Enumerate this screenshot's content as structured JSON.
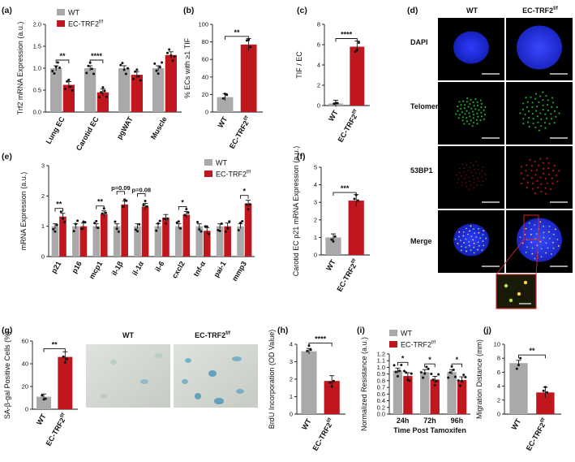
{
  "colors": {
    "wt": "#a9a9a9",
    "ko": "#c0161d",
    "dapi": "#1c2bd8",
    "telomere": "#1fa52b",
    "bp53": "#b8161a",
    "microscopy_bg": "#000000"
  },
  "panels": {
    "a": "(a)",
    "b": "(b)",
    "c": "(c)",
    "d": "(d)",
    "e": "(e)",
    "f": "(f)",
    "g": "(g)",
    "h": "(h)",
    "i": "(i)",
    "j": "(j)"
  },
  "legend": {
    "wt": "WT",
    "ko": "EC-TRF2",
    "ko_sup": "f/f"
  },
  "microscopy": {
    "col_wt": "WT",
    "col_ko": "EC-TRF2",
    "col_ko_sup": "f/f",
    "rows": [
      "DAPI",
      "Telomere",
      "53BP1",
      "Merge"
    ]
  },
  "sa_gal_images": {
    "col_wt": "WT",
    "col_ko": "EC-TRF2",
    "col_ko_sup": "f/f"
  },
  "group_labels": {
    "wt": "WT",
    "ko": "EC-TRF2",
    "ko_sup": "f/f",
    "ko_sup_a": "f/f"
  },
  "chart_data": [
    {
      "id": "a",
      "type": "bar",
      "ylabel": "Trf2 mRNA Expression (a.u.)",
      "categories": [
        "Lung EC",
        "Carotid EC",
        "pgWAT",
        "Muscle"
      ],
      "series": [
        {
          "name": "WT",
          "values": [
            1.0,
            1.0,
            1.0,
            1.0
          ]
        },
        {
          "name": "EC-TRF2f/f",
          "values": [
            0.62,
            0.45,
            0.85,
            1.3
          ]
        }
      ],
      "ylim": [
        0,
        2.0
      ],
      "yticks": [
        "0.0",
        "0.5",
        "1.0",
        "1.5",
        "2.0"
      ],
      "significance": [
        "**",
        "****",
        "",
        ""
      ]
    },
    {
      "id": "b",
      "type": "bar",
      "ylabel": "% ECs with ≥1 TIF",
      "categories": [
        "WT",
        "EC-TRF2f/f"
      ],
      "values": [
        17,
        77
      ],
      "ylim": [
        0,
        100
      ],
      "yticks": [
        "0",
        "20",
        "40",
        "60",
        "80",
        "100"
      ],
      "significance": "**"
    },
    {
      "id": "c",
      "type": "bar",
      "ylabel": "TIF / EC",
      "categories": [
        "WT",
        "EC-TRF2f/f"
      ],
      "values": [
        0.2,
        5.8
      ],
      "ylim": [
        0,
        8
      ],
      "yticks": [
        "0",
        "2",
        "4",
        "6",
        "8"
      ],
      "significance": "****"
    },
    {
      "id": "e",
      "type": "bar",
      "ylabel": "mRNA Expression (a.u.)",
      "categories": [
        "p21",
        "p16",
        "mcp1",
        "il-1β",
        "il-1α",
        "il-6",
        "cxcl2",
        "tnf-α",
        "pai-1",
        "mmp3"
      ],
      "series": [
        {
          "name": "WT",
          "values": [
            1.0,
            1.0,
            1.0,
            1.0,
            1.0,
            1.0,
            1.0,
            1.0,
            1.0,
            1.0
          ]
        },
        {
          "name": "EC-TRF2f/f",
          "values": [
            1.32,
            1.0,
            1.4,
            1.72,
            1.65,
            1.28,
            1.38,
            0.85,
            1.0,
            1.75
          ]
        }
      ],
      "ylim": [
        0,
        3
      ],
      "yticks": [
        "0",
        "1",
        "2",
        "3"
      ],
      "significance": [
        "**",
        "",
        "**",
        "p=0.09",
        "p=0.08",
        "",
        "*",
        "",
        "",
        "*"
      ]
    },
    {
      "id": "f",
      "type": "bar",
      "ylabel": "Carotid EC p21 mRNA Expression (a.u.)",
      "categories": [
        "WT",
        "EC-TRF2f/f"
      ],
      "values": [
        1.0,
        3.1
      ],
      "ylim": [
        0,
        5
      ],
      "yticks": [
        "0",
        "1",
        "2",
        "3",
        "4",
        "5"
      ],
      "significance": "***"
    },
    {
      "id": "g",
      "type": "bar",
      "ylabel": "SA-β-gal Positive Cells (%)",
      "categories": [
        "WT",
        "EC-TRF2f/f"
      ],
      "values": [
        11,
        46
      ],
      "ylim": [
        0,
        60
      ],
      "yticks": [
        "0",
        "20",
        "40",
        "60"
      ],
      "significance": "**"
    },
    {
      "id": "h",
      "type": "bar",
      "ylabel": "BrdU Incorporation (OD Value)",
      "categories": [
        "WT",
        "EC-TRF2f/f"
      ],
      "values": [
        3.6,
        1.9
      ],
      "ylim": [
        0,
        4
      ],
      "yticks": [
        "0",
        "1",
        "2",
        "3",
        "4"
      ],
      "significance": "****"
    },
    {
      "id": "i",
      "type": "bar",
      "ylabel": "Normalized Resistance (a.u.)",
      "xlabel": "Time Post Tamoxifen",
      "categories": [
        "24h",
        "72h",
        "96h"
      ],
      "series": [
        {
          "name": "WT",
          "values": [
            0.87,
            0.84,
            0.84
          ]
        },
        {
          "name": "EC-TRF2f/f",
          "values": [
            0.76,
            0.69,
            0.68
          ]
        }
      ],
      "ylim": [
        0,
        1.2
      ],
      "yticks": [
        "0.0",
        "0.2",
        "0.4",
        "0.6",
        "0.7",
        "0.8",
        "0.9",
        "1.0",
        "1.1",
        "1.2"
      ],
      "significance": [
        "*",
        "*",
        "*"
      ]
    },
    {
      "id": "j",
      "type": "bar",
      "ylabel": "Migration Distance (mm)",
      "categories": [
        "WT",
        "EC-TRF2f/f"
      ],
      "values": [
        7.3,
        3.1
      ],
      "ylim": [
        0,
        10
      ],
      "yticks": [
        "0",
        "2",
        "4",
        "6",
        "8",
        "10"
      ],
      "significance": "**"
    }
  ]
}
